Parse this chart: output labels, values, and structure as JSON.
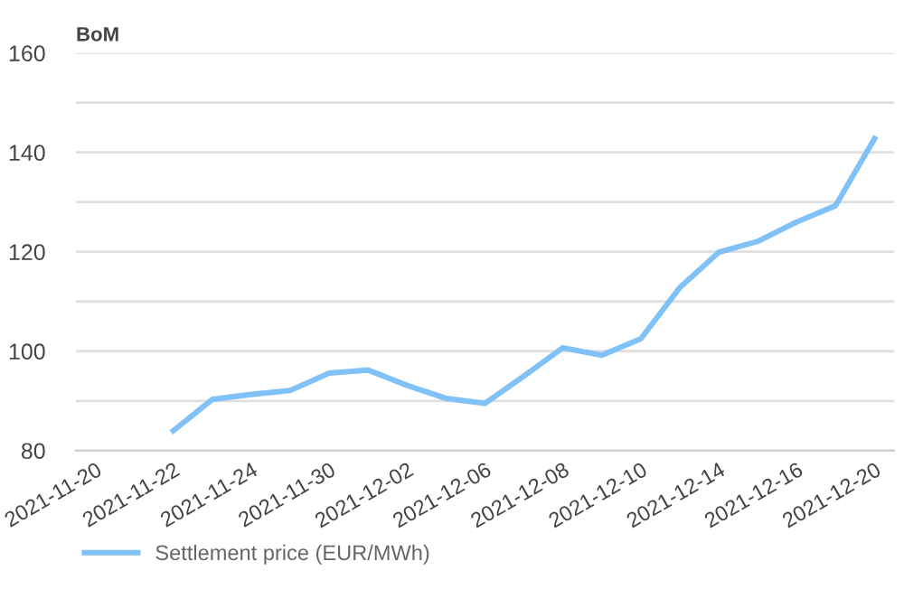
{
  "chart_data": {
    "type": "line",
    "title": "BoM",
    "categories": [
      "2021-11-20",
      null,
      "2021-11-22",
      null,
      "2021-11-24",
      null,
      "2021-11-30",
      null,
      "2021-12-02",
      null,
      "2021-12-06",
      null,
      "2021-12-08",
      null,
      "2021-12-10",
      null,
      "2021-12-14",
      null,
      "2021-12-16",
      null,
      "2021-12-20"
    ],
    "series": [
      {
        "name": "Settlement price (EUR/MWh)",
        "color": "#80c1f7",
        "values": [
          null,
          null,
          84.0,
          90.3,
          91.3,
          92.1,
          95.6,
          96.2,
          93.1,
          90.5,
          89.5,
          95.0,
          100.7,
          99.2,
          102.5,
          112.8,
          119.9,
          122.1,
          126.0,
          129.3,
          142.8
        ]
      }
    ],
    "ylim": [
      80,
      160
    ],
    "yticks": [
      80,
      {
        "value": 90,
        "label": null
      },
      100,
      {
        "value": 110,
        "label": null
      },
      120,
      {
        "value": 130,
        "label": null
      },
      140,
      {
        "value": 150,
        "label": null
      },
      160
    ],
    "grid": "y",
    "legend": "bottom left",
    "marker": "none",
    "line_style": "solid"
  }
}
